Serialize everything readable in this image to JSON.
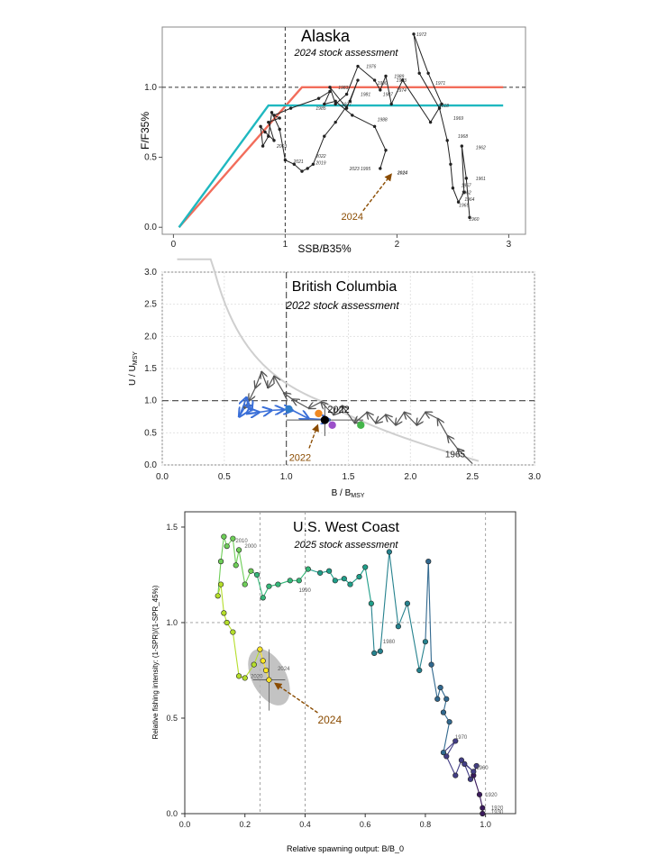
{
  "chart_data": [
    {
      "type": "line",
      "title": "Alaska",
      "subtitle": "2024 stock assessment",
      "xlabel": "SSB/B35%",
      "ylabel": "F/F35%",
      "xlim": [
        -0.1,
        3.15
      ],
      "ylim": [
        -0.05,
        1.43
      ],
      "xticks": [
        "0",
        "1",
        "2",
        "3"
      ],
      "yticks": [
        "0.0",
        "0.5",
        "1.0"
      ],
      "reference_lines": {
        "x": 1,
        "y": 1
      },
      "colors": {
        "path": "#222222",
        "rule_upper": "#f26d5b",
        "rule_lower": "#1fb8c0",
        "arrow": "#8a4b00",
        "ref": "#333333"
      },
      "series": [
        {
          "values_x": [
            0.05,
            1.15,
            2.95
          ],
          "values_y": [
            0.0,
            1.0,
            1.0
          ]
        },
        {
          "values_x": [
            0.05,
            0.85,
            2.95
          ],
          "values_y": [
            0.0,
            0.87,
            0.87
          ]
        }
      ],
      "trajectory": {
        "x": [
          2.65,
          2.62,
          2.58,
          2.6,
          2.55,
          2.5,
          2.48,
          2.45,
          2.38,
          2.2,
          2.15,
          2.28,
          2.4,
          2.3,
          2.05,
          1.95,
          1.9,
          1.85,
          1.8,
          1.65,
          1.55,
          1.45,
          1.4,
          1.55,
          1.65,
          1.58,
          1.45,
          1.35,
          1.25,
          1.2,
          1.15,
          1.08,
          1.0,
          0.95,
          0.88,
          0.85,
          0.8,
          0.78,
          0.82,
          0.9,
          0.85,
          0.95,
          0.9,
          1.05,
          1.3,
          1.4,
          1.35,
          1.45,
          1.6,
          1.8,
          1.9,
          1.85
        ],
        "y": [
          0.07,
          0.35,
          0.58,
          0.25,
          0.18,
          0.28,
          0.45,
          0.62,
          0.85,
          1.1,
          1.38,
          1.1,
          0.88,
          0.75,
          1.05,
          0.88,
          1.08,
          0.98,
          1.05,
          1.15,
          0.95,
          0.88,
          1.0,
          0.85,
          1.05,
          0.9,
          0.75,
          0.65,
          0.45,
          0.42,
          0.4,
          0.45,
          0.48,
          0.7,
          0.82,
          0.65,
          0.58,
          0.72,
          0.68,
          0.62,
          0.75,
          0.78,
          0.8,
          0.85,
          0.92,
          0.97,
          0.88,
          0.9,
          0.8,
          0.72,
          0.55,
          0.42
        ]
      },
      "point_labels": [
        {
          "x": 2.62,
          "y": 0.06,
          "label": "1960"
        },
        {
          "x": 2.53,
          "y": 0.16,
          "label": "1965"
        },
        {
          "x": 2.55,
          "y": 0.3,
          "label": "1967"
        },
        {
          "x": 2.55,
          "y": 0.25,
          "label": "1962"
        },
        {
          "x": 2.58,
          "y": 0.2,
          "label": "1964"
        },
        {
          "x": 2.68,
          "y": 0.35,
          "label": "1961"
        },
        {
          "x": 2.68,
          "y": 0.57,
          "label": "1962"
        },
        {
          "x": 2.52,
          "y": 0.65,
          "label": "1968"
        },
        {
          "x": 2.48,
          "y": 0.78,
          "label": "1969"
        },
        {
          "x": 2.15,
          "y": 1.38,
          "label": "1972"
        },
        {
          "x": 2.32,
          "y": 1.03,
          "label": "1971"
        },
        {
          "x": 1.7,
          "y": 1.15,
          "label": "1976"
        },
        {
          "x": 1.97,
          "y": 1.05,
          "label": "1973"
        },
        {
          "x": 1.97,
          "y": 0.98,
          "label": "1974"
        },
        {
          "x": 1.95,
          "y": 1.08,
          "label": "1989"
        },
        {
          "x": 1.85,
          "y": 0.95,
          "label": "1987"
        },
        {
          "x": 1.8,
          "y": 0.77,
          "label": "1988"
        },
        {
          "x": 1.65,
          "y": 0.95,
          "label": "1981"
        },
        {
          "x": 1.8,
          "y": 1.03,
          "label": "1990"
        },
        {
          "x": 1.45,
          "y": 1.0,
          "label": "1983"
        },
        {
          "x": 1.48,
          "y": 0.88,
          "label": "1977"
        },
        {
          "x": 1.25,
          "y": 0.85,
          "label": "1985"
        },
        {
          "x": 1.25,
          "y": 0.51,
          "label": "2022"
        },
        {
          "x": 1.25,
          "y": 0.46,
          "label": "2019"
        },
        {
          "x": 1.55,
          "y": 0.42,
          "label": "2023"
        },
        {
          "x": 1.65,
          "y": 0.42,
          "label": "1995"
        },
        {
          "x": 1.05,
          "y": 0.47,
          "label": "2021"
        },
        {
          "x": 0.9,
          "y": 0.58,
          "label": "2003"
        },
        {
          "x": 2.35,
          "y": 0.87,
          "label": "2018"
        },
        {
          "x": 1.98,
          "y": 0.39,
          "label": "2024"
        }
      ],
      "annotation": {
        "text": "2024",
        "x": 1.6,
        "y": 0.08
      }
    },
    {
      "type": "line",
      "title": "British Columbia",
      "subtitle": "2022 stock assessment",
      "xlabel": "B / B",
      "xlabel_sub": "MSY",
      "ylabel": "U / U",
      "ylabel_sub": "MSY",
      "xlim": [
        0,
        3
      ],
      "ylim": [
        0,
        3
      ],
      "xticks": [
        "0.0",
        "0.5",
        "1.0",
        "1.5",
        "2.0",
        "2.5",
        "3.0"
      ],
      "yticks": [
        "0.0",
        "0.5",
        "1.0",
        "1.5",
        "2.0",
        "2.5",
        "3.0"
      ],
      "reference_lines": {
        "x": 1,
        "y": 1
      },
      "colors": {
        "path": "#555555",
        "recent": "#3a6fd8",
        "curve": "#cfcfcf",
        "arrow": "#8a4b00",
        "current": "#000000",
        "orange": "#f08a24",
        "purple": "#9b4fc9",
        "green": "#44b54a",
        "blue_dot": "#2f7cc9"
      },
      "trajectory_dark": {
        "x": [
          2.5,
          2.38,
          2.3,
          2.22,
          2.12,
          2.05,
          1.95,
          1.88,
          1.8,
          1.72,
          1.65,
          1.55,
          1.45,
          1.38,
          1.28,
          1.18,
          1.05,
          0.98,
          0.9,
          0.85,
          0.8,
          0.75,
          0.7,
          0.66
        ],
        "y": [
          0.02,
          0.25,
          0.45,
          0.72,
          0.82,
          0.62,
          0.82,
          0.62,
          0.78,
          0.65,
          0.82,
          0.65,
          0.92,
          0.78,
          0.98,
          0.88,
          1.02,
          1.12,
          1.38,
          1.2,
          1.45,
          1.2,
          1.0,
          0.88
        ]
      },
      "trajectory_recent": {
        "x": [
          0.66,
          0.62,
          0.68,
          0.72,
          0.68,
          0.78,
          0.88,
          0.98,
          1.05,
          1.18,
          1.35
        ],
        "y": [
          0.88,
          0.75,
          1.05,
          0.85,
          0.8,
          0.82,
          0.85,
          0.86,
          0.85,
          0.72,
          0.7
        ]
      },
      "curve": {
        "u_times_b": 1.27
      },
      "current": {
        "x": 1.31,
        "y": 0.7,
        "x_err": [
          1.0,
          1.62
        ],
        "y_err": [
          0.45,
          0.95
        ],
        "label": "2022"
      },
      "start_label": {
        "x": 2.28,
        "y": 0.12,
        "label": "1965"
      },
      "other_points": [
        {
          "x": 1.26,
          "y": 0.8,
          "color": "orange"
        },
        {
          "x": 1.37,
          "y": 0.62,
          "color": "purple"
        },
        {
          "x": 1.6,
          "y": 0.62,
          "color": "green"
        },
        {
          "x": 1.02,
          "y": 0.87,
          "color": "blue_dot"
        }
      ],
      "annotation": {
        "text": "2022",
        "x": 1.14,
        "y": 0.12
      }
    },
    {
      "type": "line",
      "title": "U.S. West Coast",
      "subtitle": "2025 stock assessment",
      "xlabel": "Relative spawning output: B/B_0",
      "ylabel": "Relative fishing intensity: (1-SPR)/(1-SPR_45%)",
      "xlim": [
        0,
        1.1
      ],
      "ylim": [
        0,
        1.58
      ],
      "xticks": [
        "0.0",
        "0.2",
        "0.4",
        "0.6",
        "0.8",
        "1.0"
      ],
      "yticks": [
        "0.0",
        "0.5",
        "1.0",
        "1.5"
      ],
      "reference_lines": {
        "x": [
          0.25,
          0.4,
          1.0
        ],
        "y": 1.0
      },
      "colors": {
        "ellipse": "#b8b8b8",
        "arrow": "#8a4b00",
        "grid": "#999999"
      },
      "trajectory": {
        "x": [
          0.99,
          0.99,
          0.98,
          0.96,
          0.97,
          0.95,
          0.93,
          0.96,
          0.92,
          0.9,
          0.87,
          0.9,
          0.86,
          0.88,
          0.86,
          0.87,
          0.85,
          0.84,
          0.82,
          0.81,
          0.8,
          0.78,
          0.74,
          0.71,
          0.68,
          0.65,
          0.63,
          0.62,
          0.6,
          0.58,
          0.55,
          0.53,
          0.5,
          0.48,
          0.45,
          0.41,
          0.38,
          0.35,
          0.31,
          0.28,
          0.26,
          0.24,
          0.22,
          0.2,
          0.18,
          0.17,
          0.16,
          0.14,
          0.13,
          0.12,
          0.11,
          0.12,
          0.13,
          0.14,
          0.16,
          0.18,
          0.2,
          0.23,
          0.25,
          0.26,
          0.27,
          0.28
        ],
        "y": [
          0.0,
          0.03,
          0.1,
          0.2,
          0.25,
          0.18,
          0.26,
          0.22,
          0.28,
          0.2,
          0.3,
          0.38,
          0.32,
          0.48,
          0.53,
          0.6,
          0.66,
          0.6,
          0.78,
          1.32,
          0.9,
          0.75,
          1.1,
          0.98,
          1.37,
          0.85,
          0.84,
          1.1,
          1.29,
          1.24,
          1.2,
          1.23,
          1.22,
          1.27,
          1.26,
          1.28,
          1.22,
          1.22,
          1.2,
          1.19,
          1.13,
          1.25,
          1.27,
          1.2,
          1.38,
          1.3,
          1.44,
          1.4,
          1.45,
          1.32,
          1.14,
          1.2,
          1.05,
          1.0,
          0.95,
          0.72,
          0.71,
          0.78,
          0.86,
          0.8,
          0.75,
          0.7
        ]
      },
      "year_labels": [
        {
          "x": 1.01,
          "y": 0.03,
          "label": "1920"
        },
        {
          "x": 1.01,
          "y": 0.01,
          "label": "1930"
        },
        {
          "x": 0.99,
          "y": 0.1,
          "label": "1920"
        },
        {
          "x": 0.96,
          "y": 0.24,
          "label": "1960"
        },
        {
          "x": 0.89,
          "y": 0.4,
          "label": "1970"
        },
        {
          "x": 0.65,
          "y": 0.9,
          "label": "1980"
        },
        {
          "x": 0.37,
          "y": 1.17,
          "label": "1990"
        },
        {
          "x": 0.19,
          "y": 1.4,
          "label": "2000"
        },
        {
          "x": 0.16,
          "y": 1.43,
          "label": "2010"
        },
        {
          "x": 0.21,
          "y": 0.72,
          "label": "2020"
        },
        {
          "x": 0.3,
          "y": 0.76,
          "label": "2024"
        }
      ],
      "current": {
        "x": 0.28,
        "y": 0.7,
        "label": "2024"
      },
      "annotation": {
        "text": "2024",
        "x": 0.43,
        "y": 0.5
      }
    }
  ]
}
